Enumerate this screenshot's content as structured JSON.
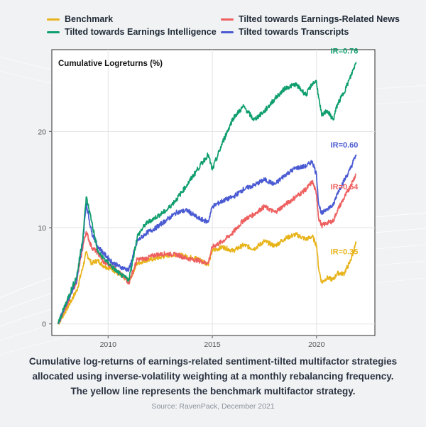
{
  "legend": [
    {
      "label": "Benchmark",
      "color": "#e8b41c"
    },
    {
      "label": "Tilted towards Earnings-Related News",
      "color": "#ee6060"
    },
    {
      "label": "Tilted towards Earnings Intelligence",
      "color": "#0f9e6e"
    },
    {
      "label": "Tilted towards Transcripts",
      "color": "#4a5ad2"
    }
  ],
  "caption": {
    "line1": "Cumulative log-returns of earnings-related sentiment-tilted multifactor strategies",
    "line2": "allocated using inverse-volatility weighting at a monthly rebalancing frequency.",
    "line3": "The yellow line represents the benchmark multifactor strategy."
  },
  "source": "Source: RavenPack, December 2021",
  "chart_data": {
    "type": "line",
    "title": "Cumulative Logreturns (%)",
    "xlabel": "",
    "ylabel": "",
    "xlim": [
      2007.3,
      2022.8
    ],
    "ylim": [
      -1.2,
      28.5
    ],
    "x_ticks": [
      2010,
      2015,
      2020
    ],
    "y_ticks": [
      0,
      10,
      20
    ],
    "grid": true,
    "legend_position": "top",
    "x": [
      2007.6,
      2008.0,
      2008.5,
      2008.8,
      2008.95,
      2009.2,
      2009.5,
      2009.8,
      2010.2,
      2010.6,
      2011.0,
      2011.4,
      2011.8,
      2012.3,
      2012.8,
      2013.3,
      2013.8,
      2014.3,
      2014.8,
      2015.0,
      2015.5,
      2016.0,
      2016.5,
      2017.0,
      2017.5,
      2018.0,
      2018.5,
      2019.0,
      2019.5,
      2019.8,
      2020.0,
      2020.1,
      2020.25,
      2020.5,
      2020.8,
      2021.0,
      2021.3,
      2021.6,
      2021.9
    ],
    "series": [
      {
        "name": "Benchmark",
        "color": "#e8b41c",
        "label": "IR=0.35",
        "values": [
          0.0,
          1.5,
          3.5,
          6.0,
          7.4,
          6.3,
          6.6,
          6.0,
          5.7,
          5.0,
          4.5,
          6.3,
          6.6,
          6.8,
          7.1,
          7.2,
          7.0,
          6.8,
          6.2,
          7.6,
          8.0,
          7.6,
          8.2,
          7.8,
          8.6,
          8.1,
          8.9,
          9.3,
          8.8,
          9.1,
          8.2,
          5.8,
          4.3,
          4.8,
          4.6,
          5.3,
          5.2,
          6.4,
          8.4
        ]
      },
      {
        "name": "Tilted towards Earnings-Related News",
        "color": "#ee6060",
        "label": "IR=0.54",
        "values": [
          0.0,
          2.0,
          4.5,
          8.2,
          9.6,
          8.0,
          7.4,
          6.4,
          6.0,
          5.2,
          4.3,
          6.7,
          6.8,
          7.2,
          7.3,
          7.2,
          6.8,
          6.6,
          6.3,
          8.0,
          8.6,
          9.5,
          10.8,
          11.4,
          12.2,
          11.6,
          12.4,
          13.2,
          14.0,
          14.8,
          13.5,
          11.0,
          10.2,
          10.5,
          10.7,
          11.8,
          13.0,
          14.2,
          15.6
        ]
      },
      {
        "name": "Tilted towards Earnings Intelligence",
        "color": "#0f9e6e",
        "label": "IR=0.76",
        "values": [
          0.0,
          2.3,
          5.0,
          9.2,
          13.2,
          10.8,
          7.5,
          6.8,
          5.9,
          5.1,
          4.6,
          9.1,
          10.4,
          11.1,
          11.8,
          13.0,
          14.5,
          16.1,
          17.6,
          16.0,
          18.9,
          21.4,
          22.6,
          21.2,
          22.1,
          23.4,
          24.5,
          24.9,
          23.8,
          25.0,
          25.2,
          23.5,
          21.6,
          22.2,
          21.2,
          22.8,
          24.0,
          25.5,
          27.2
        ]
      },
      {
        "name": "Tilted towards Transcripts",
        "color": "#4a5ad2",
        "label": "IR=0.60",
        "values": [
          0.0,
          2.2,
          4.6,
          8.8,
          12.6,
          9.6,
          8.1,
          7.3,
          6.4,
          5.9,
          5.6,
          8.6,
          9.4,
          10.0,
          10.8,
          11.6,
          11.8,
          11.0,
          10.6,
          12.2,
          12.8,
          13.2,
          14.0,
          14.4,
          15.0,
          14.5,
          15.5,
          16.2,
          16.4,
          16.9,
          15.5,
          12.5,
          11.4,
          12.0,
          12.3,
          13.6,
          14.8,
          16.0,
          17.6
        ]
      }
    ]
  }
}
